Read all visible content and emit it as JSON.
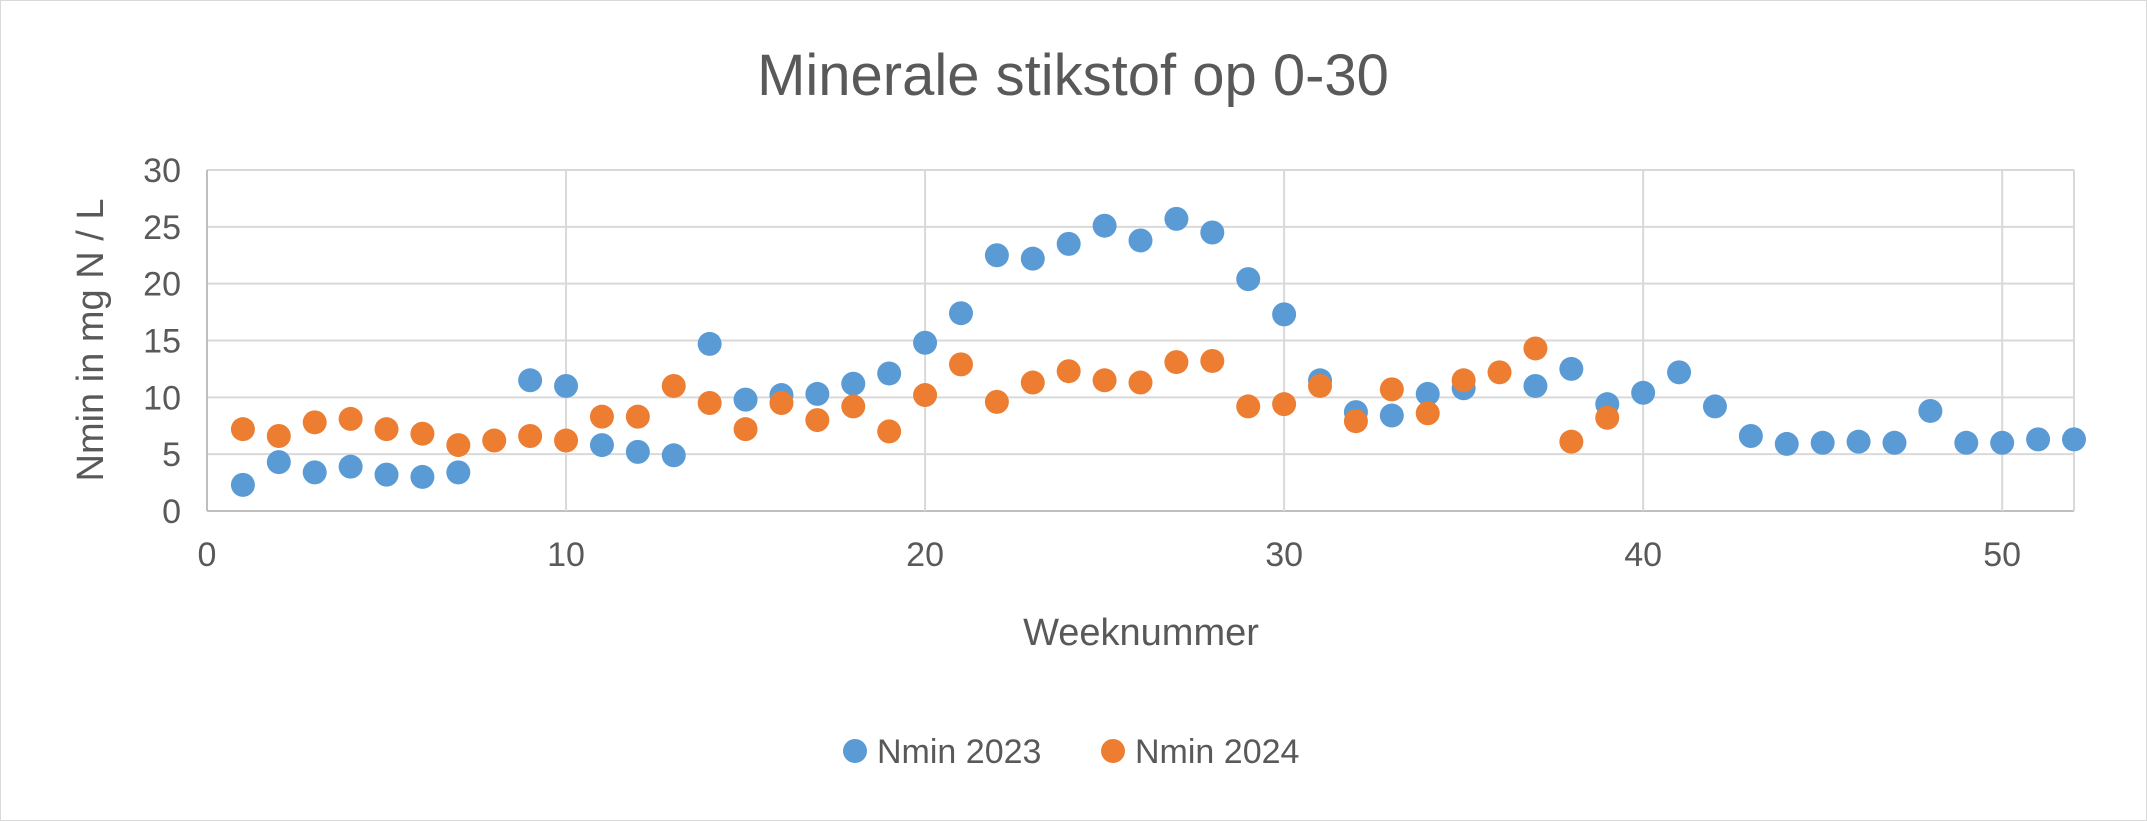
{
  "chart_data": {
    "type": "scatter",
    "title": "Minerale stikstof op 0-30",
    "xlabel": "Weeknummer",
    "ylabel": "Nmin in mg N / L",
    "xlim": [
      0,
      52
    ],
    "ylim": [
      0,
      30
    ],
    "x_ticks": [
      0,
      10,
      20,
      30,
      40,
      50
    ],
    "y_ticks": [
      0,
      5,
      10,
      15,
      20,
      25,
      30
    ],
    "grid": true,
    "legend_position": "bottom",
    "series": [
      {
        "name": "Nmin 2023",
        "color": "#5b9bd5",
        "points": [
          [
            1,
            2.3
          ],
          [
            2,
            4.3
          ],
          [
            3,
            3.4
          ],
          [
            4,
            3.9
          ],
          [
            5,
            3.2
          ],
          [
            6,
            3.0
          ],
          [
            7,
            3.4
          ],
          [
            9,
            11.5
          ],
          [
            10,
            11.0
          ],
          [
            11,
            5.8
          ],
          [
            12,
            5.2
          ],
          [
            13,
            4.9
          ],
          [
            14,
            14.7
          ],
          [
            15,
            9.8
          ],
          [
            16,
            10.2
          ],
          [
            17,
            10.3
          ],
          [
            18,
            11.2
          ],
          [
            19,
            12.1
          ],
          [
            20,
            14.8
          ],
          [
            21,
            17.4
          ],
          [
            22,
            22.5
          ],
          [
            23,
            22.2
          ],
          [
            24,
            23.5
          ],
          [
            25,
            25.1
          ],
          [
            26,
            23.8
          ],
          [
            27,
            25.7
          ],
          [
            28,
            24.5
          ],
          [
            29,
            20.4
          ],
          [
            30,
            17.3
          ],
          [
            31,
            11.5
          ],
          [
            32,
            8.7
          ],
          [
            33,
            8.4
          ],
          [
            34,
            10.3
          ],
          [
            35,
            10.8
          ],
          [
            37,
            11.0
          ],
          [
            38,
            12.5
          ],
          [
            39,
            9.4
          ],
          [
            40,
            10.4
          ],
          [
            41,
            12.2
          ],
          [
            42,
            9.2
          ],
          [
            43,
            6.6
          ],
          [
            44,
            5.9
          ],
          [
            45,
            6.0
          ],
          [
            46,
            6.1
          ],
          [
            47,
            6.0
          ],
          [
            48,
            8.8
          ],
          [
            49,
            6.0
          ],
          [
            50,
            6.0
          ],
          [
            51,
            6.3
          ],
          [
            52,
            6.3
          ]
        ]
      },
      {
        "name": "Nmin 2024",
        "color": "#ed7d31",
        "points": [
          [
            1,
            7.2
          ],
          [
            2,
            6.6
          ],
          [
            3,
            7.8
          ],
          [
            4,
            8.1
          ],
          [
            5,
            7.2
          ],
          [
            6,
            6.8
          ],
          [
            7,
            5.8
          ],
          [
            8,
            6.2
          ],
          [
            9,
            6.6
          ],
          [
            10,
            6.2
          ],
          [
            11,
            8.3
          ],
          [
            12,
            8.3
          ],
          [
            13,
            11.0
          ],
          [
            14,
            9.5
          ],
          [
            15,
            7.2
          ],
          [
            16,
            9.5
          ],
          [
            17,
            8.0
          ],
          [
            18,
            9.2
          ],
          [
            19,
            7.0
          ],
          [
            20,
            10.2
          ],
          [
            21,
            12.9
          ],
          [
            22,
            9.6
          ],
          [
            23,
            11.3
          ],
          [
            24,
            12.3
          ],
          [
            25,
            11.5
          ],
          [
            26,
            11.3
          ],
          [
            27,
            13.1
          ],
          [
            28,
            13.2
          ],
          [
            29,
            9.2
          ],
          [
            30,
            9.4
          ],
          [
            31,
            11.0
          ],
          [
            32,
            7.9
          ],
          [
            33,
            10.7
          ],
          [
            34,
            8.6
          ],
          [
            35,
            11.5
          ],
          [
            36,
            12.2
          ],
          [
            37,
            14.3
          ],
          [
            38,
            6.1
          ],
          [
            39,
            8.2
          ]
        ]
      }
    ]
  }
}
